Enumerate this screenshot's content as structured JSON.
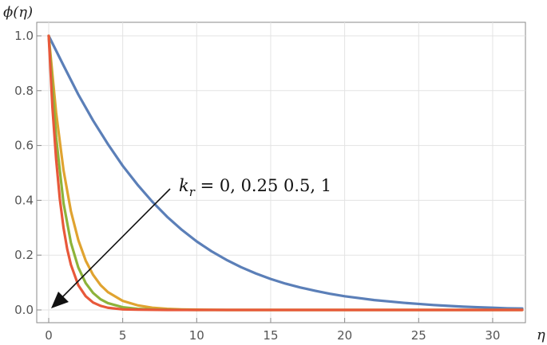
{
  "chart_data": {
    "type": "line",
    "title": "",
    "xlabel": "η",
    "ylabel": "ϕ(η)",
    "xlim": [
      0,
      32
    ],
    "ylim": [
      0,
      1.0
    ],
    "xticks": [
      0,
      5,
      10,
      15,
      20,
      25,
      30
    ],
    "yticks": [
      0.0,
      0.2,
      0.4,
      0.6,
      0.8,
      1.0
    ],
    "grid": true,
    "annotation": {
      "italic": "k",
      "subscript": "r",
      "rest": " = 0, 0.25 0.5, 1"
    },
    "series": [
      {
        "color": "#5B7FB8",
        "x": [
          0,
          1,
          2,
          3,
          4,
          5,
          6,
          7,
          8,
          9,
          10,
          11,
          12,
          13,
          14,
          15,
          16,
          17,
          18,
          19,
          20,
          21,
          22,
          23,
          24,
          25,
          26,
          27,
          28,
          29,
          30,
          31,
          32
        ],
        "values": [
          1.0,
          0.892,
          0.786,
          0.691,
          0.605,
          0.526,
          0.457,
          0.395,
          0.34,
          0.292,
          0.25,
          0.214,
          0.183,
          0.156,
          0.133,
          0.113,
          0.096,
          0.082,
          0.07,
          0.059,
          0.05,
          0.043,
          0.036,
          0.031,
          0.026,
          0.022,
          0.018,
          0.015,
          0.012,
          0.01,
          0.008,
          0.006,
          0.005
        ]
      },
      {
        "color": "#E0A330",
        "x": [
          0,
          0.5,
          1,
          1.5,
          2,
          2.5,
          3,
          3.5,
          4,
          5,
          6,
          7,
          8,
          9,
          10,
          12,
          15,
          20,
          25,
          32
        ],
        "values": [
          1.0,
          0.72,
          0.51,
          0.36,
          0.255,
          0.18,
          0.128,
          0.091,
          0.065,
          0.033,
          0.017,
          0.008,
          0.004,
          0.002,
          0.001,
          0.0,
          0.0,
          0.0,
          0.0,
          0.0
        ]
      },
      {
        "color": "#8DB33A",
        "x": [
          0,
          0.5,
          1,
          1.5,
          2,
          2.5,
          3,
          3.5,
          4,
          5,
          6,
          7,
          8,
          10,
          15,
          20,
          25,
          32
        ],
        "values": [
          1.0,
          0.63,
          0.39,
          0.245,
          0.155,
          0.098,
          0.062,
          0.039,
          0.025,
          0.01,
          0.004,
          0.002,
          0.001,
          0.0,
          0.0,
          0.0,
          0.0,
          0.0
        ]
      },
      {
        "color": "#E8583A",
        "x": [
          0,
          0.25,
          0.5,
          0.75,
          1,
          1.25,
          1.5,
          2,
          2.5,
          3,
          3.5,
          4,
          5,
          6,
          8,
          10,
          15,
          20,
          25,
          32
        ],
        "values": [
          1.0,
          0.74,
          0.55,
          0.405,
          0.3,
          0.222,
          0.165,
          0.09,
          0.05,
          0.027,
          0.015,
          0.008,
          0.002,
          0.001,
          0.0,
          0.0,
          0.0,
          0.0,
          0.0,
          0.0
        ]
      }
    ]
  }
}
